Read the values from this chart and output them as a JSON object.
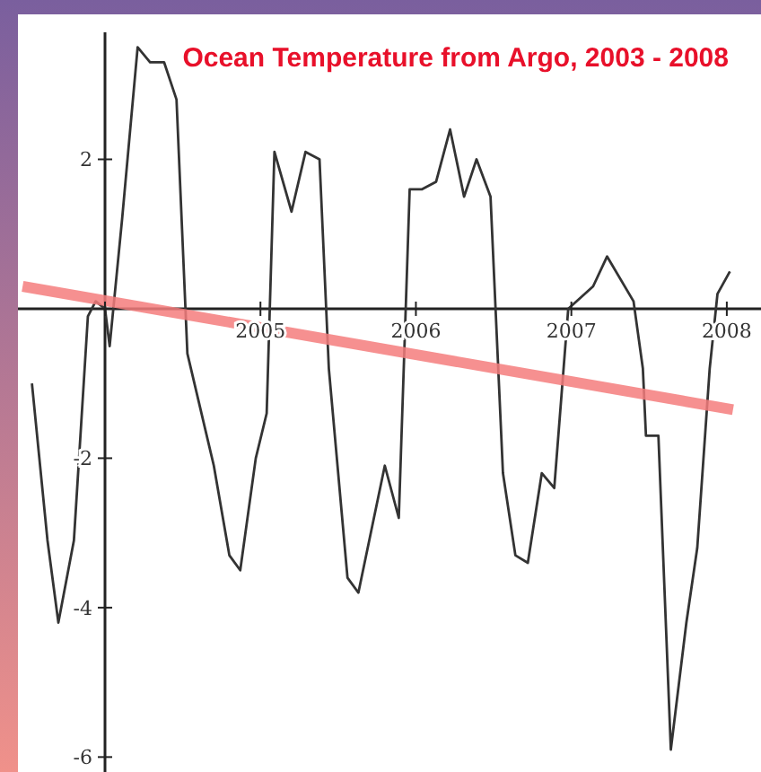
{
  "chart_data": {
    "type": "line",
    "title": "Ocean Temperature from Argo, 2003 - 2008",
    "xlim": [
      2003.44,
      2008.22
    ],
    "ylim": [
      -6.2,
      3.7
    ],
    "xticks": [
      {
        "value": 2004,
        "label": null
      },
      2005,
      2006,
      2007,
      2008
    ],
    "yticks": [
      -6,
      -4,
      -2,
      {
        "value": 0,
        "label": null
      },
      2
    ],
    "marker": "none",
    "line_style": "solid",
    "series": [
      {
        "color": "#333333",
        "x": [
          2003.53,
          2003.63,
          2003.7,
          2003.8,
          2003.89,
          2003.94,
          2004.0,
          2004.03,
          2004.11,
          2004.21,
          2004.29,
          2004.38,
          2004.46,
          2004.53,
          2004.7,
          2004.8,
          2004.87,
          2004.97,
          2005.04,
          2005.09,
          2005.2,
          2005.29,
          2005.38,
          2005.44,
          2005.56,
          2005.63,
          2005.72,
          2005.8,
          2005.89,
          2005.96,
          2006.04,
          2006.13,
          2006.22,
          2006.31,
          2006.39,
          2006.48,
          2006.56,
          2006.64,
          2006.72,
          2006.81,
          2006.89,
          2006.98,
          2007.14,
          2007.23,
          2007.4,
          2007.46,
          2007.48,
          2007.56,
          2007.64,
          2007.74,
          2007.81,
          2007.89,
          2007.94,
          2008.02
        ],
        "values": [
          -1.0,
          -3.1,
          -4.2,
          -3.1,
          -0.1,
          0.1,
          0.0,
          -0.5,
          1.2,
          3.5,
          3.3,
          3.3,
          2.8,
          -0.6,
          -2.1,
          -3.3,
          -3.5,
          -2.0,
          -1.4,
          2.1,
          1.3,
          2.1,
          2.0,
          -0.8,
          -3.6,
          -3.8,
          -2.9,
          -2.1,
          -2.8,
          1.6,
          1.6,
          1.7,
          2.4,
          1.5,
          2.0,
          1.5,
          -2.2,
          -3.3,
          -3.4,
          -2.2,
          -2.4,
          0.0,
          0.3,
          0.7,
          0.1,
          -0.8,
          -1.7,
          -1.7,
          -5.9,
          -4.2,
          -3.2,
          -0.8,
          0.2,
          0.5
        ]
      },
      {
        "type": "line",
        "color": "#f47c7c",
        "x": [
          2003.47,
          2008.04
        ],
        "values": [
          0.3,
          -1.35
        ]
      }
    ]
  }
}
